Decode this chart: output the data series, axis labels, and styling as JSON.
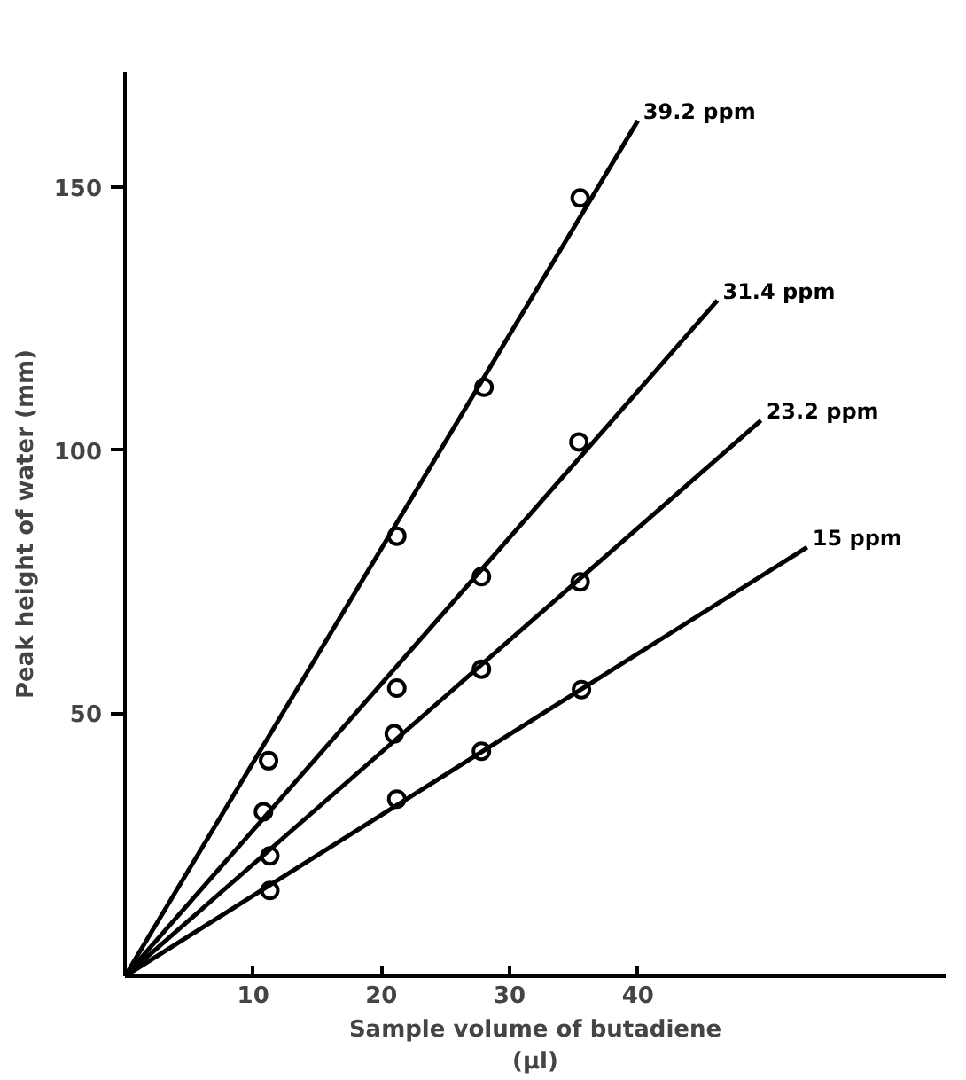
{
  "chart_data": {
    "type": "scatter",
    "xlabel": "Sample volume of butadiene\n(µl)",
    "ylabel": "Peak height of water (mm)",
    "xlim": [
      0,
      64
    ],
    "ylim": [
      0,
      172
    ],
    "xticks": [
      10,
      20,
      30,
      40
    ],
    "yticks": [
      50,
      100,
      150
    ],
    "grid": false,
    "legend": false,
    "marker": "circle",
    "series": [
      {
        "name": "39.2 ppm",
        "color": "#000000",
        "x": [
          11.2,
          21.2,
          28.0,
          35.5
        ],
        "values": [
          41,
          83.7,
          112,
          148
        ]
      },
      {
        "type": "line",
        "marker": "none",
        "color": "#000000",
        "x": [
          0,
          40
        ],
        "values": [
          0,
          162.7
        ]
      },
      {
        "name": "31.4 ppm",
        "color": "#000000",
        "x": [
          10.8,
          21.2,
          27.8,
          35.4
        ],
        "values": [
          31.3,
          54.8,
          76,
          101.6
        ]
      },
      {
        "type": "line",
        "marker": "none",
        "color": "#000000",
        "x": [
          0,
          46.2
        ],
        "values": [
          0,
          128.5
        ]
      },
      {
        "name": "23.2 ppm",
        "color": "#000000",
        "x": [
          11.3,
          21.0,
          27.8,
          35.5
        ],
        "values": [
          22.9,
          46.1,
          58.4,
          75
        ]
      },
      {
        "type": "line",
        "marker": "none",
        "color": "#000000",
        "x": [
          0,
          49.6
        ],
        "values": [
          0,
          105.7
        ]
      },
      {
        "name": "15 ppm",
        "color": "#000000",
        "x": [
          11.3,
          21.2,
          27.8,
          35.6
        ],
        "values": [
          16.3,
          33.7,
          42.8,
          54.5
        ]
      },
      {
        "type": "line",
        "marker": "none",
        "color": "#000000",
        "x": [
          0,
          53.2
        ],
        "values": [
          0,
          81.6
        ]
      }
    ]
  }
}
